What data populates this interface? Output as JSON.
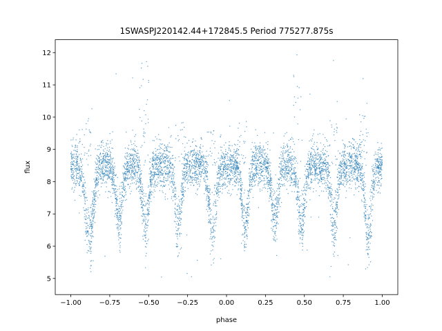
{
  "chart_data": {
    "type": "scatter",
    "title": "1SWASPJ220142.44+172845.5 Period 775277.875s",
    "xlabel": "phase",
    "ylabel": "flux",
    "xlim": [
      -1.1,
      1.1
    ],
    "ylim": [
      4.5,
      12.4
    ],
    "xticks": [
      -1.0,
      -0.75,
      -0.5,
      -0.25,
      0.0,
      0.25,
      0.5,
      0.75,
      1.0
    ],
    "xtick_labels": [
      "−1.00",
      "−0.75",
      "−0.50",
      "−0.25",
      "0.00",
      "0.25",
      "0.50",
      "0.75",
      "1.00"
    ],
    "yticks": [
      5,
      6,
      7,
      8,
      9,
      10,
      11,
      12
    ],
    "ytick_labels": [
      "5",
      "6",
      "7",
      "8",
      "9",
      "10",
      "11",
      "12"
    ],
    "grid": false,
    "legend": "none",
    "marker_color": "#1f77b4",
    "baseline_flux": 8.5,
    "scatter_sigma": 0.35,
    "phase_range": [
      -1.0,
      1.0
    ],
    "dips": [
      {
        "phase": -0.88,
        "min_flux": 5.6,
        "width": 0.025
      },
      {
        "phase": -0.69,
        "min_flux": 6.3,
        "width": 0.02
      },
      {
        "phase": -0.52,
        "min_flux": 6.0,
        "width": 0.02
      },
      {
        "phase": -0.31,
        "min_flux": 6.1,
        "width": 0.02
      },
      {
        "phase": -0.09,
        "min_flux": 5.7,
        "width": 0.02
      },
      {
        "phase": 0.12,
        "min_flux": 6.0,
        "width": 0.02
      },
      {
        "phase": 0.31,
        "min_flux": 6.3,
        "width": 0.02
      },
      {
        "phase": 0.48,
        "min_flux": 6.1,
        "width": 0.02
      },
      {
        "phase": 0.69,
        "min_flux": 6.0,
        "width": 0.02
      },
      {
        "phase": 0.91,
        "min_flux": 5.6,
        "width": 0.02
      }
    ],
    "peaks": [
      {
        "phase": -0.9,
        "max_flux": 10.1
      },
      {
        "phase": -0.53,
        "max_flux": 12.0
      },
      {
        "phase": -0.3,
        "max_flux": 10.0
      },
      {
        "phase": -0.1,
        "max_flux": 9.6
      },
      {
        "phase": 0.1,
        "max_flux": 9.9
      },
      {
        "phase": 0.46,
        "max_flux": 12.0
      },
      {
        "phase": 0.69,
        "max_flux": 10.0
      },
      {
        "phase": 0.88,
        "max_flux": 10.1
      }
    ]
  }
}
